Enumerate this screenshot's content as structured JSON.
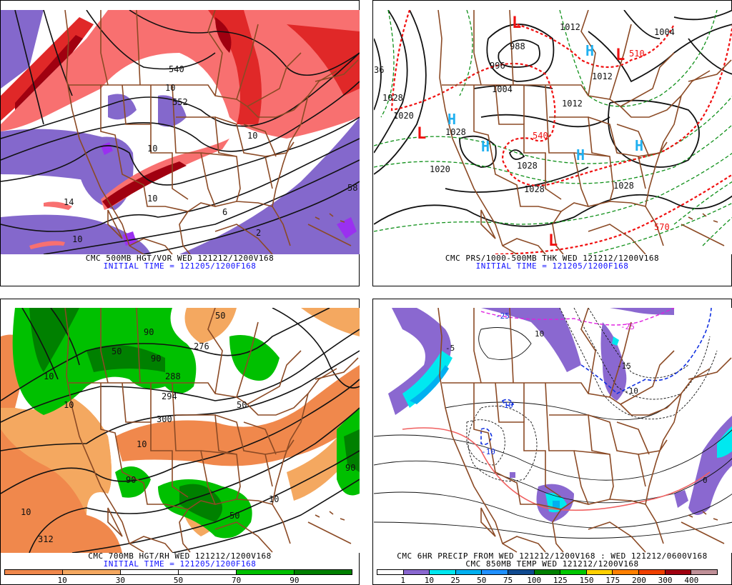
{
  "panels": [
    {
      "title": "CMC 500MB HGT/VOR WED 121212/1200V168",
      "subtitle": "INITIAL TIME = 121205/1200F168",
      "contour_labels": [
        "540",
        "552",
        "10",
        "10",
        "10",
        "10",
        "58",
        "14",
        "10",
        "2",
        "6"
      ],
      "colors": {
        "vor_neg": "#8468cc",
        "vor_neg_strong": "#9a30f0",
        "vor_pos1": "#f87070",
        "vor_pos2": "#e02828",
        "vor_pos3": "#a00010"
      }
    },
    {
      "title": "CMC PRS/1000-500MB THK WED 121212/1200V168",
      "subtitle": "INITIAL TIME = 121205/1200F168",
      "contour_labels": [
        "988",
        "996",
        "1004",
        "1012",
        "1012",
        "1012",
        "1028",
        "1020",
        "1028",
        "1020",
        "1028",
        "1028",
        "1028",
        "1004",
        "36"
      ],
      "thickness_labels": [
        "540",
        "510",
        "570"
      ],
      "highs": [
        "H",
        "H",
        "H",
        "H",
        "H"
      ],
      "lows": [
        "L",
        "L",
        "L",
        "L"
      ],
      "colors": {
        "high": "#20b0f0",
        "low": "#f01010",
        "thickness_cold": "#10901a",
        "thickness_warm": "#f01010"
      }
    },
    {
      "title": "CMC 700MB HGT/RH WED 121212/1200V168",
      "subtitle": "INITIAL TIME = 121205/1200F168",
      "contour_labels": [
        "50",
        "90",
        "50",
        "90",
        "10",
        "10",
        "300",
        "288",
        "276",
        "294",
        "10",
        "50",
        "90",
        "50",
        "10",
        "312",
        "10",
        "90"
      ],
      "colorbar": {
        "colors": [
          "#f0884c",
          "#f4a860",
          "#ffffff",
          "#ffffff",
          "#00c000",
          "#008000"
        ],
        "labels": [
          "10",
          "30",
          "50",
          "70",
          "90"
        ]
      }
    },
    {
      "title": "CMC 6HR PRECIP FROM WED 121212/1200V168 : WED 121212/0600V168",
      "subtitle": "CMC 850MB TEMP WED 121212/1200V168",
      "contour_labels": [
        "-10",
        "-10",
        "10",
        "-25",
        "-25",
        "-5",
        "-15",
        "-10",
        "0"
      ],
      "colorbar": {
        "colors": [
          "#ffffff",
          "#8a68d0",
          "#00e8f0",
          "#00b0f0",
          "#2090ff",
          "#104a90",
          "#008000",
          "#00c800",
          "#ffd000",
          "#ff8000",
          "#f04000",
          "#a00010",
          "#c09098"
        ],
        "labels": [
          "1",
          "10",
          "25",
          "50",
          "75",
          "100",
          "125",
          "150",
          "175",
          "200",
          "300",
          "400"
        ]
      }
    }
  ]
}
